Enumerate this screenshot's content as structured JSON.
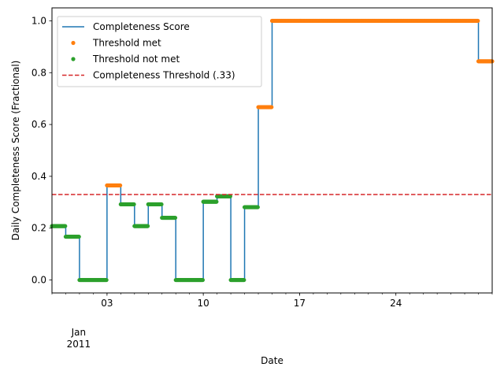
{
  "chart_data": {
    "type": "line",
    "xlabel": "Date",
    "ylabel": "Daily Completeness Score (Fractional)",
    "x_range": [
      "2010-12-30",
      "2011-01-31"
    ],
    "ylim": [
      -0.05,
      1.05
    ],
    "y_ticks": [
      "0.0",
      "0.2",
      "0.4",
      "0.6",
      "0.8",
      "1.0"
    ],
    "x_ticks": [
      {
        "date": "2011-01-03",
        "label": "03"
      },
      {
        "date": "2011-01-10",
        "label": "10"
      },
      {
        "date": "2011-01-17",
        "label": "17"
      },
      {
        "date": "2011-01-24",
        "label": "24"
      }
    ],
    "x_tick_sublabel": {
      "date": "2011-01-03",
      "month": "Jan",
      "year": "2011"
    },
    "threshold": 0.33,
    "grid": false,
    "legend_position": "top-left",
    "legend": [
      {
        "label": "Completeness Score",
        "kind": "line",
        "color": "#1f77b4"
      },
      {
        "label": "Threshold met",
        "kind": "dot",
        "color": "#ff7f0e"
      },
      {
        "label": "Threshold not met",
        "kind": "dot",
        "color": "#2ca02c"
      },
      {
        "label": "Completeness Threshold (.33)",
        "kind": "dashed",
        "color": "#d62728"
      }
    ],
    "series": [
      {
        "x": [
          "2010-12-30",
          "2010-12-31",
          "2011-01-01",
          "2011-01-02",
          "2011-01-03",
          "2011-01-04",
          "2011-01-05",
          "2011-01-06",
          "2011-01-07",
          "2011-01-08",
          "2011-01-09",
          "2011-01-10",
          "2011-01-11",
          "2011-01-12",
          "2011-01-13",
          "2011-01-14",
          "2011-01-15",
          "2011-01-16",
          "2011-01-17",
          "2011-01-18",
          "2011-01-19",
          "2011-01-20",
          "2011-01-21",
          "2011-01-22",
          "2011-01-23",
          "2011-01-24",
          "2011-01-25",
          "2011-01-26",
          "2011-01-27",
          "2011-01-28",
          "2011-01-29",
          "2011-01-30",
          "2011-01-31"
        ],
        "values": [
          0.208,
          0.167,
          0.0,
          0.0,
          0.365,
          0.292,
          0.208,
          0.292,
          0.24,
          0.0,
          0.0,
          0.302,
          0.323,
          0.0,
          0.281,
          0.667,
          1.0,
          1.0,
          1.0,
          1.0,
          1.0,
          1.0,
          1.0,
          1.0,
          1.0,
          1.0,
          1.0,
          1.0,
          1.0,
          1.0,
          1.0,
          0.844,
          0.844
        ]
      }
    ]
  }
}
